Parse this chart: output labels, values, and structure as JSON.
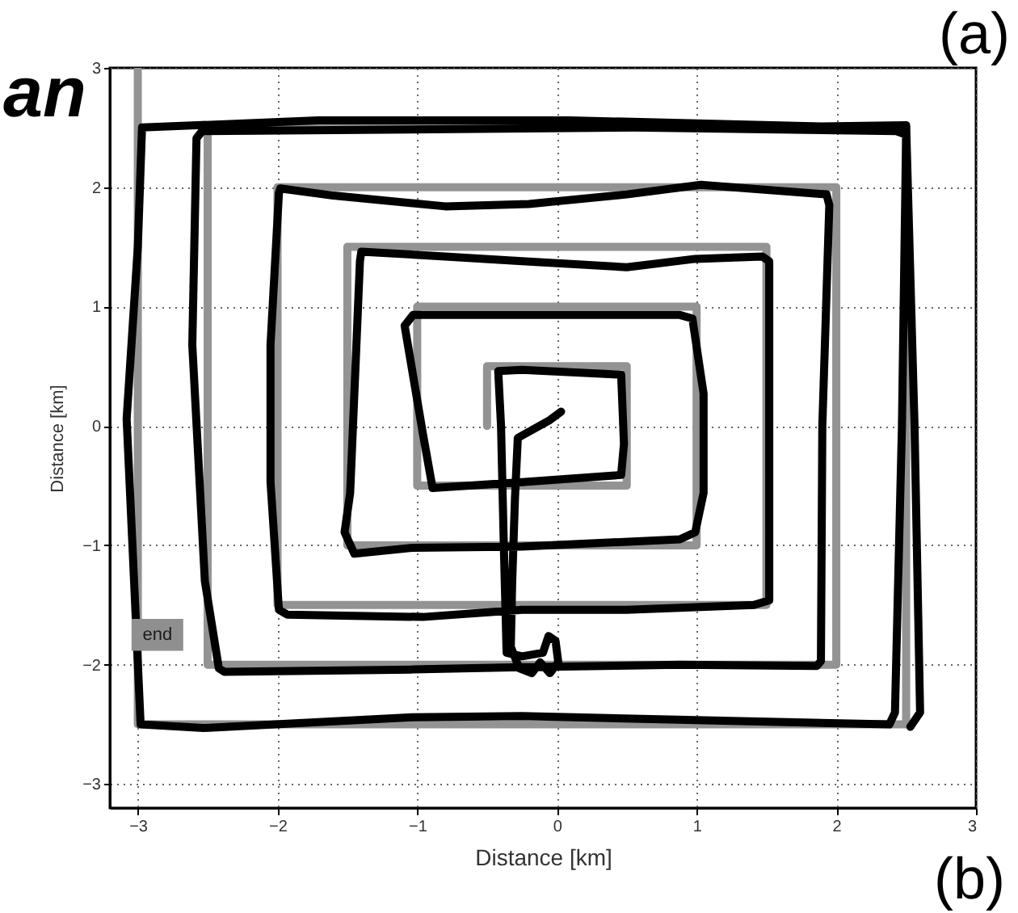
{
  "chart_data": {
    "type": "line",
    "xlabel": "Distance [km]",
    "ylabel": "Distance [km]",
    "xlim": [
      -3.2,
      3
    ],
    "ylim": [
      -3.2,
      3
    ],
    "xticks": [
      -3,
      -2,
      -1,
      0,
      1,
      2,
      3
    ],
    "yticks": [
      -3,
      -2,
      -1,
      0,
      1,
      2,
      3
    ],
    "grid": true,
    "annotations": [
      "an",
      "(a)",
      "(b)",
      {
        "text": "end",
        "x": -2.86,
        "y": -1.75
      }
    ],
    "series": [
      {
        "color": "#939393",
        "x": [
          -0.5,
          -0.5,
          0.5,
          0.5,
          -1,
          -1,
          1,
          1,
          -1.5,
          -1.5,
          1.5,
          1.5,
          -2,
          -2,
          2,
          2,
          -2.5,
          -2.5,
          2.5,
          2.5,
          -3,
          -3
        ],
        "values": [
          0,
          0.5,
          0.5,
          -0.5,
          -0.5,
          1,
          1,
          -1,
          -1,
          1.5,
          1.5,
          -1.5,
          -1.5,
          2,
          2,
          -2,
          -2,
          2.5,
          2.5,
          -2.5,
          -2.5,
          3
        ]
      },
      {
        "color": "#000000",
        "x": [
          0.03,
          -0.05,
          -0.28,
          -0.3,
          -0.32,
          -0.33,
          -0.27,
          -0.18,
          -0.12,
          -0.05,
          0.01,
          -0.01,
          -0.06,
          -0.1,
          -0.25,
          -0.36,
          -0.38,
          -0.4,
          -0.42,
          -0.25,
          0.46,
          0.48,
          0.46,
          -0.25,
          -0.89,
          -0.96,
          -1.09,
          -1.03,
          0.09,
          0.88,
          0.97,
          1.05,
          1.05,
          0.99,
          0.88,
          -0.25,
          -1.03,
          -1.45,
          -1.52,
          -1.48,
          -1.41,
          -1.4,
          -0.8,
          -0.25,
          0.5,
          0.99,
          1.47,
          1.52,
          1.52,
          1.52,
          1.41,
          0.5,
          -0.25,
          -0.96,
          -1.93,
          -1.99,
          -2.05,
          -2.05,
          -1.99,
          -1.98,
          -1.6,
          -0.8,
          -0.2,
          0.5,
          1.03,
          1.93,
          1.95,
          1.9,
          1.89,
          1.86,
          0.88,
          -0.25,
          -1.03,
          -2.38,
          -2.42,
          -2.52,
          -2.61,
          -2.58,
          -2.54,
          0.54,
          2.43,
          2.5,
          2.47,
          2.42,
          2.38,
          1.25,
          -0.25,
          -1.03,
          -2.53,
          -2.98,
          -3.04,
          -3.08,
          -3.0,
          -2.97,
          -1.71,
          0.09,
          1.89,
          2.5,
          2.56,
          2.6,
          2.53
        ],
        "values": [
          0.12,
          0.05,
          -0.1,
          -0.6,
          -1.3,
          -1.85,
          -2.03,
          -2.07,
          -1.98,
          -2.07,
          -1.98,
          -1.8,
          -1.76,
          -1.9,
          -1.93,
          -1.9,
          -1.0,
          0.0,
          0.46,
          0.47,
          0.43,
          -0.15,
          -0.41,
          -0.47,
          -0.52,
          -0.06,
          0.84,
          0.93,
          0.93,
          0.93,
          0.9,
          0.27,
          -0.56,
          -0.89,
          -0.95,
          -1.01,
          -1.02,
          -1.07,
          -0.89,
          -0.56,
          1.38,
          1.46,
          1.42,
          1.38,
          1.33,
          1.4,
          1.42,
          1.38,
          0.27,
          -1.46,
          -1.5,
          -1.54,
          -1.54,
          -1.6,
          -1.58,
          -1.54,
          -0.47,
          0.68,
          1.95,
          1.99,
          1.93,
          1.84,
          1.86,
          1.94,
          2.02,
          1.94,
          1.85,
          0,
          -1.97,
          -2.01,
          -2.0,
          -2.02,
          -2.04,
          -2.06,
          -2.03,
          -1.3,
          0.68,
          2.41,
          2.47,
          2.5,
          2.47,
          2.44,
          0,
          -2.4,
          -2.5,
          -2.47,
          -2.43,
          -2.44,
          -2.53,
          -2.5,
          -0.96,
          0.06,
          1.5,
          2.5,
          2.56,
          2.56,
          2.51,
          2.52,
          0,
          -2.4,
          -2.52
        ]
      }
    ]
  }
}
